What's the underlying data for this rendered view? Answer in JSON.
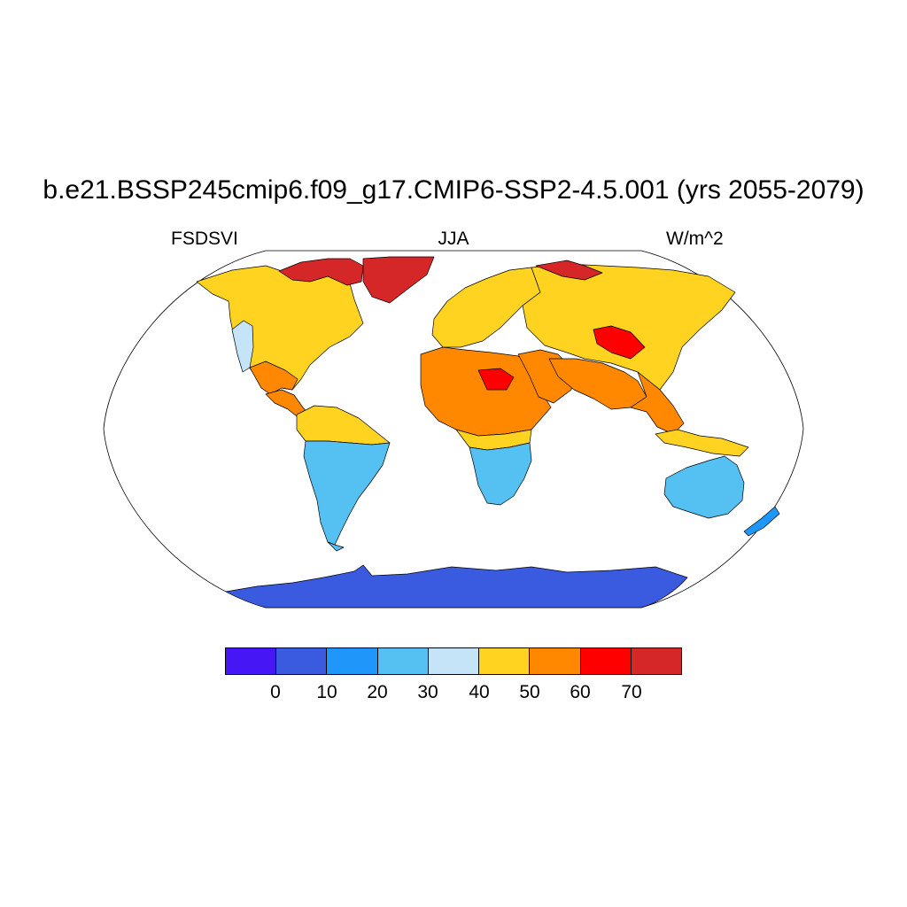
{
  "title": "b.e21.BSSP245cmip6.f09_g17.CMIP6-SSP2-4.5.001 (yrs 2055-2079)",
  "subtitle": {
    "left": "FSDSVI",
    "center": "JJA",
    "right": "W/m^2"
  },
  "map": {
    "projection": "Robinson",
    "background_color": "#ffffff",
    "outline_color": "#000000",
    "regions": [
      {
        "name": "Greenland",
        "level": "70+",
        "color": "#d62728"
      },
      {
        "name": "Canadian Arctic Archipelago",
        "level": "70+",
        "color": "#d62728"
      },
      {
        "name": "Northern Siberia coast",
        "level": "70+",
        "color": "#d62728"
      },
      {
        "name": "North America",
        "level": "40-50",
        "color": "#ffd320"
      },
      {
        "name": "US Southwest / Mexico",
        "level": "50-60",
        "color": "#ff8800"
      },
      {
        "name": "US West Coast",
        "level": "30-40",
        "color": "#c6e4f7"
      },
      {
        "name": "Central America",
        "level": "50-60",
        "color": "#ff8800"
      },
      {
        "name": "South America North",
        "level": "40-50",
        "color": "#ffd320"
      },
      {
        "name": "South America Central",
        "level": "20-30",
        "color": "#55c0f2"
      },
      {
        "name": "Patagonia",
        "level": "20-30",
        "color": "#55c0f2"
      },
      {
        "name": "Europe",
        "level": "40-50",
        "color": "#ffd320"
      },
      {
        "name": "Sahara / Sahel",
        "level": "50-60",
        "color": "#ff8800"
      },
      {
        "name": "Central Sahara",
        "level": "60-70",
        "color": "#ff0000"
      },
      {
        "name": "Equatorial Africa",
        "level": "40-50",
        "color": "#ffd320"
      },
      {
        "name": "Southern Africa",
        "level": "20-30",
        "color": "#55c0f2"
      },
      {
        "name": "Arabian Peninsula",
        "level": "50-60",
        "color": "#ff8800"
      },
      {
        "name": "Russia / Siberia",
        "level": "40-50",
        "color": "#ffd320"
      },
      {
        "name": "Tibetan Plateau",
        "level": "60-70",
        "color": "#ff0000"
      },
      {
        "name": "South Asia",
        "level": "50-60",
        "color": "#ff8800"
      },
      {
        "name": "Southeast Asia",
        "level": "50-60",
        "color": "#ff8800"
      },
      {
        "name": "Australia",
        "level": "20-30",
        "color": "#55c0f2"
      },
      {
        "name": "New Zealand",
        "level": "10-20",
        "color": "#1e96fa"
      },
      {
        "name": "Antarctica",
        "level": "0-10",
        "color": "#3a5be0"
      }
    ]
  },
  "colorbar": {
    "colors": [
      "#4616f5",
      "#3a5be0",
      "#1e96fa",
      "#55c0f2",
      "#c6e4f7",
      "#ffd320",
      "#ff8800",
      "#ff0000",
      "#d62728"
    ],
    "labels": [
      "0",
      "10",
      "20",
      "30",
      "40",
      "50",
      "60",
      "70"
    ]
  }
}
